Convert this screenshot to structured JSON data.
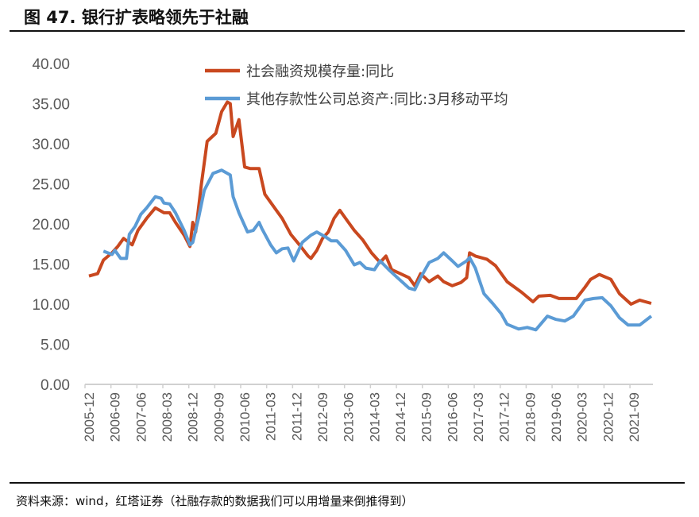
{
  "title": "图 47. 银行扩表略领先于社融",
  "source": "资料来源：wind，红塔证券（社融存款的数据我们可以用增量来倒推得到）",
  "chart_data": {
    "type": "line",
    "title": "银行扩表略领先于社融",
    "xlabel": "",
    "ylabel": "",
    "ylim": [
      0,
      40
    ],
    "yticks": [
      "0.00",
      "5.00",
      "10.00",
      "15.00",
      "20.00",
      "25.00",
      "30.00",
      "35.00",
      "40.00"
    ],
    "xrange": [
      "2005-12",
      "2022-03"
    ],
    "xticks": [
      "2005-12",
      "2006-09",
      "2007-06",
      "2008-03",
      "2008-12",
      "2009-09",
      "2010-06",
      "2011-03",
      "2011-12",
      "2012-09",
      "2013-06",
      "2014-03",
      "2014-12",
      "2015-09",
      "2016-06",
      "2017-03",
      "2017-12",
      "2018-09",
      "2019-06",
      "2020-03",
      "2020-12",
      "2021-09"
    ],
    "legend_position": "top-center",
    "grid": false,
    "series": [
      {
        "name": "社会融资规模存量:同比",
        "color": "#C9481F",
        "points": [
          [
            "2005-12",
            13.5
          ],
          [
            "2006-03",
            13.8
          ],
          [
            "2006-05",
            15.5
          ],
          [
            "2006-08",
            16.4
          ],
          [
            "2006-10",
            17.2
          ],
          [
            "2006-12",
            18.2
          ],
          [
            "2007-03",
            17.4
          ],
          [
            "2007-05",
            19.2
          ],
          [
            "2007-08",
            20.7
          ],
          [
            "2007-11",
            22.0
          ],
          [
            "2008-02",
            21.4
          ],
          [
            "2008-04",
            21.4
          ],
          [
            "2008-06",
            20.2
          ],
          [
            "2008-09",
            18.6
          ],
          [
            "2008-11",
            17.2
          ],
          [
            "2008-12",
            20.2
          ],
          [
            "2009-01",
            19.0
          ],
          [
            "2009-03",
            25.0
          ],
          [
            "2009-05",
            30.3
          ],
          [
            "2009-08",
            31.3
          ],
          [
            "2009-10",
            34.0
          ],
          [
            "2009-12",
            35.2
          ],
          [
            "2010-01",
            35.0
          ],
          [
            "2010-02",
            30.9
          ],
          [
            "2010-04",
            33.0
          ],
          [
            "2010-06",
            27.1
          ],
          [
            "2010-08",
            26.9
          ],
          [
            "2010-11",
            26.9
          ],
          [
            "2011-01",
            23.7
          ],
          [
            "2011-04",
            22.2
          ],
          [
            "2011-07",
            20.7
          ],
          [
            "2011-10",
            18.7
          ],
          [
            "2012-01",
            17.4
          ],
          [
            "2012-04",
            16.0
          ],
          [
            "2012-05",
            15.7
          ],
          [
            "2012-07",
            16.7
          ],
          [
            "2012-09",
            18.2
          ],
          [
            "2012-11",
            19.0
          ],
          [
            "2013-01",
            20.7
          ],
          [
            "2013-03",
            21.7
          ],
          [
            "2013-06",
            20.2
          ],
          [
            "2013-08",
            19.2
          ],
          [
            "2013-11",
            18.0
          ],
          [
            "2014-02",
            16.4
          ],
          [
            "2014-05",
            15.2
          ],
          [
            "2014-07",
            16.0
          ],
          [
            "2014-09",
            14.3
          ],
          [
            "2014-12",
            13.8
          ],
          [
            "2015-03",
            13.3
          ],
          [
            "2015-05",
            12.3
          ],
          [
            "2015-07",
            13.8
          ],
          [
            "2015-10",
            12.8
          ],
          [
            "2016-01",
            13.5
          ],
          [
            "2016-03",
            12.8
          ],
          [
            "2016-06",
            12.3
          ],
          [
            "2016-09",
            12.7
          ],
          [
            "2016-11",
            13.3
          ],
          [
            "2016-12",
            16.4
          ],
          [
            "2017-02",
            16.0
          ],
          [
            "2017-06",
            15.6
          ],
          [
            "2017-09",
            14.8
          ],
          [
            "2018-01",
            12.8
          ],
          [
            "2018-06",
            11.5
          ],
          [
            "2018-10",
            10.3
          ],
          [
            "2018-12",
            11.0
          ],
          [
            "2019-04",
            11.1
          ],
          [
            "2019-07",
            10.7
          ],
          [
            "2020-01",
            10.7
          ],
          [
            "2020-04",
            12.1
          ],
          [
            "2020-06",
            13.1
          ],
          [
            "2020-09",
            13.7
          ],
          [
            "2021-01",
            13.1
          ],
          [
            "2021-04",
            11.3
          ],
          [
            "2021-08",
            10.0
          ],
          [
            "2021-11",
            10.5
          ],
          [
            "2022-01",
            10.3
          ],
          [
            "2022-03",
            10.1
          ]
        ]
      },
      {
        "name": "其他存款性公司总资产:同比:3月移动平均",
        "color": "#5B9BD5",
        "points": [
          [
            "2006-05",
            16.6
          ],
          [
            "2006-08",
            16.2
          ],
          [
            "2006-09",
            16.7
          ],
          [
            "2006-11",
            15.7
          ],
          [
            "2007-01",
            15.7
          ],
          [
            "2007-02",
            18.7
          ],
          [
            "2007-04",
            19.7
          ],
          [
            "2007-06",
            21.2
          ],
          [
            "2007-08",
            22.0
          ],
          [
            "2007-11",
            23.4
          ],
          [
            "2008-01",
            23.2
          ],
          [
            "2008-02",
            22.6
          ],
          [
            "2008-04",
            22.5
          ],
          [
            "2008-06",
            21.4
          ],
          [
            "2008-09",
            19.2
          ],
          [
            "2008-11",
            17.4
          ],
          [
            "2008-12",
            17.7
          ],
          [
            "2009-02",
            20.7
          ],
          [
            "2009-04",
            24.2
          ],
          [
            "2009-07",
            26.3
          ],
          [
            "2009-10",
            26.7
          ],
          [
            "2010-01",
            26.1
          ],
          [
            "2010-02",
            23.4
          ],
          [
            "2010-04",
            21.4
          ],
          [
            "2010-07",
            19.0
          ],
          [
            "2010-09",
            19.2
          ],
          [
            "2010-11",
            20.2
          ],
          [
            "2010-12",
            19.4
          ],
          [
            "2011-03",
            17.4
          ],
          [
            "2011-05",
            16.4
          ],
          [
            "2011-07",
            16.9
          ],
          [
            "2011-09",
            17.0
          ],
          [
            "2011-11",
            15.4
          ],
          [
            "2012-02",
            17.7
          ],
          [
            "2012-05",
            18.6
          ],
          [
            "2012-07",
            19.0
          ],
          [
            "2012-10",
            18.4
          ],
          [
            "2012-12",
            17.9
          ],
          [
            "2013-02",
            17.9
          ],
          [
            "2013-05",
            16.7
          ],
          [
            "2013-08",
            14.9
          ],
          [
            "2013-10",
            15.2
          ],
          [
            "2013-12",
            14.5
          ],
          [
            "2014-03",
            14.3
          ],
          [
            "2014-05",
            15.4
          ],
          [
            "2014-08",
            14.3
          ],
          [
            "2014-11",
            13.3
          ],
          [
            "2015-03",
            12.0
          ],
          [
            "2015-05",
            11.8
          ],
          [
            "2015-07",
            13.3
          ],
          [
            "2015-10",
            15.2
          ],
          [
            "2016-01",
            15.7
          ],
          [
            "2016-03",
            16.4
          ],
          [
            "2016-06",
            15.4
          ],
          [
            "2016-08",
            14.7
          ],
          [
            "2016-11",
            15.4
          ],
          [
            "2016-12",
            15.8
          ],
          [
            "2017-02",
            14.5
          ],
          [
            "2017-05",
            11.3
          ],
          [
            "2017-08",
            10.1
          ],
          [
            "2017-11",
            8.8
          ],
          [
            "2018-01",
            7.5
          ],
          [
            "2018-05",
            6.9
          ],
          [
            "2018-08",
            7.1
          ],
          [
            "2018-11",
            6.8
          ],
          [
            "2019-03",
            8.5
          ],
          [
            "2019-06",
            8.1
          ],
          [
            "2019-09",
            7.9
          ],
          [
            "2019-12",
            8.5
          ],
          [
            "2020-04",
            10.5
          ],
          [
            "2020-07",
            10.7
          ],
          [
            "2020-10",
            10.8
          ],
          [
            "2021-01",
            9.8
          ],
          [
            "2021-04",
            8.3
          ],
          [
            "2021-07",
            7.4
          ],
          [
            "2021-11",
            7.4
          ],
          [
            "2022-03",
            8.5
          ]
        ]
      }
    ]
  }
}
